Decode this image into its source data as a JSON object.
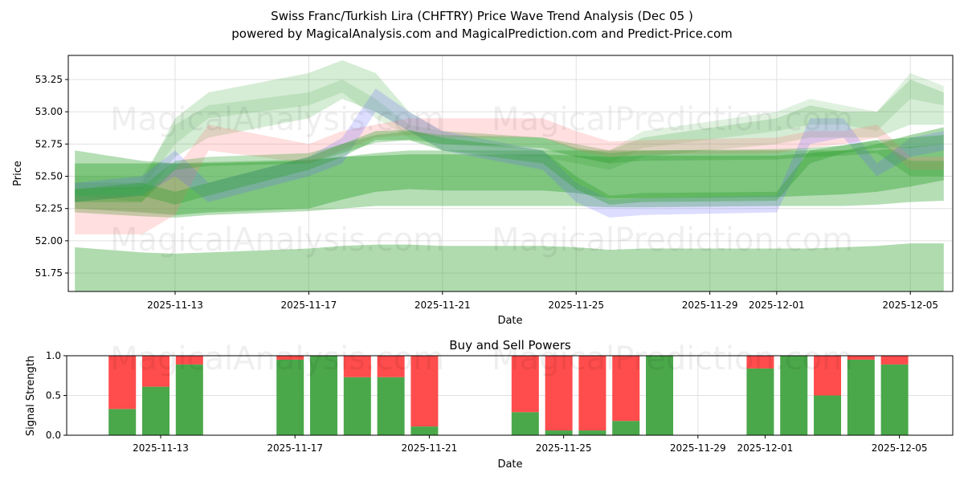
{
  "chart_data": [
    {
      "type": "area",
      "title": "Swiss Franc/Turkish Lira (CHFTRY) Price Wave Trend Analysis (Dec 05 )",
      "subtitle": "powered by MagicalAnalysis.com and MagicalPrediction.com and Predict-Price.com",
      "xlabel": "Date",
      "ylabel": "Price",
      "ylim": [
        51.607,
        53.437
      ],
      "xlim": [
        "2025-11-09",
        "2025-12-06"
      ],
      "yticks": [
        "51.75",
        "52.00",
        "52.25",
        "52.50",
        "52.75",
        "53.00",
        "53.25"
      ],
      "xticks": [
        "2025-11-13",
        "2025-11-17",
        "2025-11-21",
        "2025-11-25",
        "2025-11-29",
        "2025-12-01",
        "2025-12-05"
      ],
      "grid": true,
      "watermarks": [
        "MagicalAnalysis.com",
        "MagicalPrediction.com"
      ],
      "x": [
        "2025-11-10",
        "2025-11-12",
        "2025-11-13",
        "2025-11-14",
        "2025-11-17",
        "2025-11-18",
        "2025-11-19",
        "2025-11-20",
        "2025-11-21",
        "2025-11-24",
        "2025-11-25",
        "2025-11-26",
        "2025-11-27",
        "2025-12-01",
        "2025-12-02",
        "2025-12-03",
        "2025-12-04",
        "2025-12-05",
        "2025-12-06"
      ],
      "bands": [
        {
          "color": "#2ca02c",
          "opacity": 0.38,
          "low": [
            51.6,
            51.6,
            51.6,
            51.6,
            51.6,
            51.6,
            51.6,
            51.6,
            51.6,
            51.6,
            51.6,
            51.6,
            51.6,
            51.6,
            51.6,
            51.6,
            51.6,
            51.6,
            51.6
          ],
          "high": [
            51.95,
            51.91,
            51.9,
            51.91,
            51.94,
            51.96,
            51.97,
            51.97,
            51.96,
            51.96,
            51.95,
            51.93,
            51.94,
            51.94,
            51.94,
            51.95,
            51.96,
            51.98,
            51.98
          ]
        },
        {
          "color": "#2ca02c",
          "opacity": 0.35,
          "low": [
            52.22,
            52.19,
            52.18,
            52.2,
            52.23,
            52.25,
            52.27,
            52.27,
            52.27,
            52.27,
            52.27,
            52.26,
            52.26,
            52.27,
            52.27,
            52.27,
            52.28,
            52.3,
            52.31
          ],
          "high": [
            52.7,
            52.62,
            52.6,
            52.61,
            52.63,
            52.65,
            52.68,
            52.7,
            52.7,
            52.7,
            52.7,
            52.7,
            52.7,
            52.7,
            52.7,
            52.7,
            52.7,
            52.73,
            52.75
          ]
        },
        {
          "color": "#2ca02c",
          "opacity": 0.4,
          "low": [
            52.25,
            52.22,
            52.2,
            52.22,
            52.25,
            52.32,
            52.38,
            52.4,
            52.39,
            52.39,
            52.37,
            52.33,
            52.33,
            52.34,
            52.35,
            52.36,
            52.38,
            52.42,
            52.47
          ],
          "high": [
            52.6,
            52.6,
            52.6,
            52.6,
            52.62,
            52.65,
            52.66,
            52.67,
            52.67,
            52.67,
            52.66,
            52.65,
            52.66,
            52.66,
            52.68,
            52.7,
            52.75,
            52.82,
            52.88
          ]
        },
        {
          "color": "#2ca02c",
          "opacity": 0.2,
          "low": [
            52.35,
            52.3,
            52.65,
            52.8,
            52.95,
            53.1,
            53.0,
            52.85,
            52.7,
            52.65,
            52.6,
            52.55,
            52.65,
            52.75,
            52.8,
            52.8,
            52.8,
            52.9,
            52.9
          ],
          "high": [
            52.45,
            52.45,
            52.95,
            53.15,
            53.3,
            53.4,
            53.3,
            53.0,
            52.85,
            52.8,
            52.75,
            52.7,
            52.8,
            52.95,
            53.05,
            53.0,
            53.0,
            53.25,
            53.15
          ]
        },
        {
          "color": "#2ca02c",
          "opacity": 0.15,
          "low": [
            52.4,
            52.4,
            52.75,
            52.95,
            53.05,
            53.15,
            52.95,
            52.8,
            52.75,
            52.7,
            52.65,
            52.6,
            52.72,
            52.85,
            52.9,
            52.9,
            52.85,
            53.1,
            53.05
          ],
          "high": [
            52.5,
            52.5,
            52.9,
            53.05,
            53.15,
            53.25,
            53.1,
            52.9,
            52.85,
            52.8,
            52.75,
            52.7,
            52.85,
            53.0,
            53.1,
            53.05,
            53.0,
            53.3,
            53.2
          ]
        },
        {
          "color": "#ff8080",
          "opacity": 0.25,
          "low": [
            52.05,
            52.05,
            52.2,
            52.7,
            52.6,
            52.7,
            52.8,
            52.82,
            52.8,
            52.8,
            52.7,
            52.65,
            52.67,
            52.68,
            52.72,
            52.75,
            52.8,
            52.55,
            52.55
          ],
          "high": [
            52.35,
            52.35,
            52.55,
            52.9,
            52.75,
            52.85,
            52.9,
            52.95,
            52.95,
            52.95,
            52.85,
            52.77,
            52.78,
            52.8,
            52.85,
            52.85,
            52.9,
            52.65,
            52.65
          ]
        },
        {
          "color": "#6666ff",
          "opacity": 0.22,
          "low": [
            52.3,
            52.35,
            52.5,
            52.3,
            52.5,
            52.6,
            53.0,
            52.85,
            52.7,
            52.55,
            52.3,
            52.18,
            52.2,
            52.22,
            52.75,
            52.8,
            52.5,
            52.65,
            52.7
          ],
          "high": [
            52.45,
            52.5,
            52.7,
            52.45,
            52.65,
            52.8,
            53.18,
            53.0,
            52.85,
            52.7,
            52.45,
            52.32,
            52.33,
            52.35,
            52.95,
            52.95,
            52.6,
            52.8,
            52.85
          ]
        },
        {
          "color": "#2ca02c",
          "opacity": 0.35,
          "low": [
            52.3,
            52.35,
            52.28,
            52.35,
            52.55,
            52.65,
            52.78,
            52.78,
            52.7,
            52.6,
            52.4,
            52.28,
            52.3,
            52.31,
            52.6,
            52.68,
            52.72,
            52.72,
            52.75
          ],
          "high": [
            52.4,
            52.45,
            52.38,
            52.45,
            52.65,
            52.75,
            52.85,
            52.86,
            52.8,
            52.7,
            52.5,
            52.35,
            52.37,
            52.38,
            52.7,
            52.74,
            52.78,
            52.8,
            52.82
          ]
        },
        {
          "color": "#2ca02c",
          "opacity": 0.3,
          "low": [
            52.3,
            52.3,
            52.55,
            52.58,
            52.6,
            52.68,
            52.76,
            52.78,
            52.75,
            52.72,
            52.65,
            52.6,
            52.62,
            52.63,
            52.65,
            52.66,
            52.68,
            52.5,
            52.5
          ],
          "high": [
            52.4,
            52.42,
            52.62,
            52.65,
            52.68,
            52.75,
            52.82,
            52.85,
            52.82,
            52.8,
            52.72,
            52.68,
            52.7,
            52.71,
            52.72,
            52.74,
            52.78,
            52.62,
            52.62
          ]
        }
      ]
    },
    {
      "type": "bar",
      "title": "Buy and Sell Powers",
      "xlabel": "Date",
      "ylabel": "Signal Strength",
      "ylim": [
        0,
        1
      ],
      "yticks": [
        "0.0",
        "0.5",
        "1.0"
      ],
      "xticks": [
        "2025-11-13",
        "2025-11-17",
        "2025-11-21",
        "2025-11-25",
        "2025-11-29",
        "2025-12-01",
        "2025-12-05"
      ],
      "grid": true,
      "watermarks": [
        "MagicalAnalysis.com",
        "MagicalPrediction.com"
      ],
      "buy_color": "#4aa84a",
      "sell_color": "#ff4c4c",
      "categories": [
        "2025-11-12",
        "2025-11-13",
        "2025-11-14",
        "2025-11-17",
        "2025-11-18",
        "2025-11-19",
        "2025-11-20",
        "2025-11-21",
        "2025-11-24",
        "2025-11-25",
        "2025-11-26",
        "2025-11-27",
        "2025-11-28",
        "2025-12-01",
        "2025-12-02",
        "2025-12-03",
        "2025-12-04",
        "2025-12-05"
      ],
      "series": [
        {
          "name": "Buy",
          "values": [
            0.33,
            0.61,
            0.89,
            0.95,
            1.0,
            0.73,
            0.73,
            0.11,
            0.29,
            0.06,
            0.06,
            0.18,
            1.0,
            0.84,
            1.0,
            0.5,
            0.95,
            0.89
          ]
        },
        {
          "name": "Sell",
          "values": [
            0.67,
            0.39,
            0.11,
            0.05,
            0.0,
            0.27,
            0.27,
            0.89,
            0.71,
            0.94,
            0.94,
            0.82,
            0.0,
            0.16,
            0.0,
            0.5,
            0.05,
            0.11
          ]
        }
      ]
    }
  ]
}
